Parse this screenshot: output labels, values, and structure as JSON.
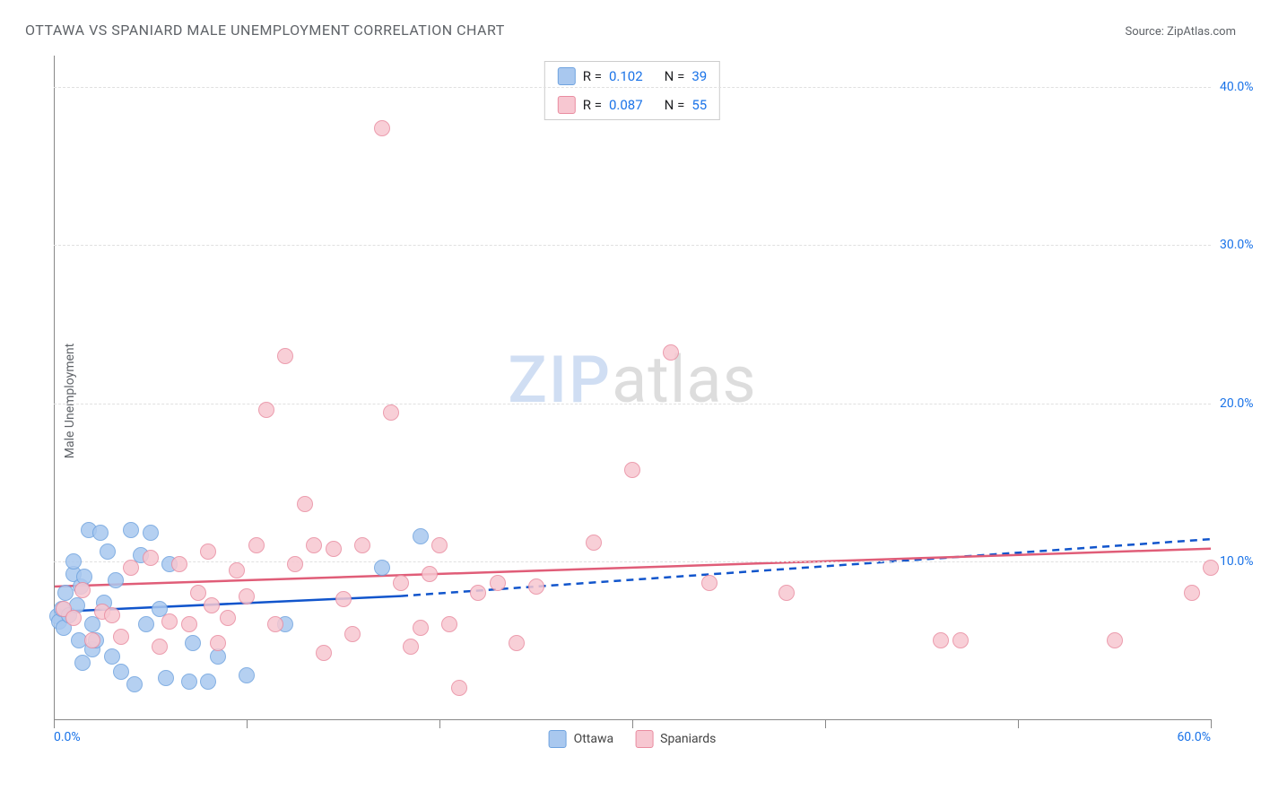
{
  "header": {
    "title": "OTTAWA VS SPANIARD MALE UNEMPLOYMENT CORRELATION CHART",
    "source": "Source: ZipAtlas.com"
  },
  "y_axis": {
    "label": "Male Unemployment"
  },
  "watermark": {
    "zip": "ZIP",
    "atlas": "atlas"
  },
  "chart": {
    "type": "scatter",
    "xlim": [
      0,
      60
    ],
    "ylim": [
      0,
      42
    ],
    "x_ticks": [
      0,
      10,
      20,
      30,
      40,
      50,
      60
    ],
    "x_tick_labels": [
      "0.0%",
      "",
      "",
      "",
      "",
      "",
      "60.0%"
    ],
    "y_grid": [
      10,
      20,
      30,
      40
    ],
    "y_tick_labels": [
      "10.0%",
      "20.0%",
      "30.0%",
      "40.0%"
    ],
    "background_color": "#ffffff",
    "grid_color": "#e0e0e0",
    "axis_color": "#888888",
    "marker_radius": 9,
    "marker_stroke_width": 1.5,
    "series": [
      {
        "name": "Ottawa",
        "fill": "#a9c8ef",
        "stroke": "#6fa3df",
        "R": "0.102",
        "N": "39",
        "trend": {
          "color": "#1155cc",
          "width": 2.5,
          "solid": [
            [
              0,
              6.8
            ],
            [
              18,
              7.8
            ]
          ],
          "dash": [
            [
              18,
              7.8
            ],
            [
              60,
              11.4
            ]
          ]
        },
        "points": [
          [
            0.2,
            6.5
          ],
          [
            0.3,
            6.2
          ],
          [
            0.4,
            7.0
          ],
          [
            0.5,
            5.8
          ],
          [
            0.6,
            8.0
          ],
          [
            0.8,
            6.6
          ],
          [
            1.0,
            9.2
          ],
          [
            1.0,
            10.0
          ],
          [
            1.2,
            7.2
          ],
          [
            1.3,
            5.0
          ],
          [
            1.4,
            8.4
          ],
          [
            1.5,
            3.6
          ],
          [
            1.6,
            9.0
          ],
          [
            1.8,
            12.0
          ],
          [
            2.0,
            6.0
          ],
          [
            2.0,
            4.4
          ],
          [
            2.2,
            5.0
          ],
          [
            2.4,
            11.8
          ],
          [
            2.6,
            7.4
          ],
          [
            2.8,
            10.6
          ],
          [
            3.0,
            4.0
          ],
          [
            3.2,
            8.8
          ],
          [
            3.5,
            3.0
          ],
          [
            4.0,
            12.0
          ],
          [
            4.2,
            2.2
          ],
          [
            4.5,
            10.4
          ],
          [
            4.8,
            6.0
          ],
          [
            5.0,
            11.8
          ],
          [
            5.5,
            7.0
          ],
          [
            5.8,
            2.6
          ],
          [
            6.0,
            9.8
          ],
          [
            7.0,
            2.4
          ],
          [
            7.2,
            4.8
          ],
          [
            8.0,
            2.4
          ],
          [
            8.5,
            4.0
          ],
          [
            10.0,
            2.8
          ],
          [
            12.0,
            6.0
          ],
          [
            17.0,
            9.6
          ],
          [
            19.0,
            11.6
          ]
        ]
      },
      {
        "name": "Spaniards",
        "fill": "#f7c7d1",
        "stroke": "#e98ca0",
        "R": "0.087",
        "N": "55",
        "trend": {
          "color": "#e05d78",
          "width": 2.5,
          "solid": [
            [
              0,
              8.4
            ],
            [
              60,
              10.8
            ]
          ],
          "dash": null
        },
        "points": [
          [
            0.5,
            7.0
          ],
          [
            1.0,
            6.4
          ],
          [
            1.5,
            8.2
          ],
          [
            2.0,
            5.0
          ],
          [
            2.5,
            6.8
          ],
          [
            3.0,
            6.6
          ],
          [
            3.5,
            5.2
          ],
          [
            4.0,
            9.6
          ],
          [
            5.0,
            10.2
          ],
          [
            5.5,
            4.6
          ],
          [
            6.0,
            6.2
          ],
          [
            6.5,
            9.8
          ],
          [
            7.0,
            6.0
          ],
          [
            7.5,
            8.0
          ],
          [
            8.0,
            10.6
          ],
          [
            8.2,
            7.2
          ],
          [
            8.5,
            4.8
          ],
          [
            9.0,
            6.4
          ],
          [
            9.5,
            9.4
          ],
          [
            10.0,
            7.8
          ],
          [
            10.5,
            11.0
          ],
          [
            11.0,
            19.6
          ],
          [
            11.5,
            6.0
          ],
          [
            12.0,
            23.0
          ],
          [
            12.5,
            9.8
          ],
          [
            13.0,
            13.6
          ],
          [
            13.5,
            11.0
          ],
          [
            14.0,
            4.2
          ],
          [
            14.5,
            10.8
          ],
          [
            15.0,
            7.6
          ],
          [
            15.5,
            5.4
          ],
          [
            16.0,
            11.0
          ],
          [
            17.0,
            37.4
          ],
          [
            17.5,
            19.4
          ],
          [
            18.0,
            8.6
          ],
          [
            18.5,
            4.6
          ],
          [
            19.0,
            5.8
          ],
          [
            19.5,
            9.2
          ],
          [
            20.0,
            11.0
          ],
          [
            20.5,
            6.0
          ],
          [
            21.0,
            2.0
          ],
          [
            22.0,
            8.0
          ],
          [
            23.0,
            8.6
          ],
          [
            24.0,
            4.8
          ],
          [
            25.0,
            8.4
          ],
          [
            28.0,
            11.2
          ],
          [
            30.0,
            15.8
          ],
          [
            32.0,
            23.2
          ],
          [
            34.0,
            8.6
          ],
          [
            38.0,
            8.0
          ],
          [
            46.0,
            5.0
          ],
          [
            47.0,
            5.0
          ],
          [
            55.0,
            5.0
          ],
          [
            59.0,
            8.0
          ],
          [
            60.0,
            9.6
          ]
        ]
      }
    ]
  },
  "legend_top": {
    "rows": [
      {
        "swatch_fill": "#a9c8ef",
        "swatch_stroke": "#6fa3df",
        "r_lbl": "R =",
        "r": "0.102",
        "n_lbl": "N =",
        "n": "39"
      },
      {
        "swatch_fill": "#f7c7d1",
        "swatch_stroke": "#e98ca0",
        "r_lbl": "R =",
        "r": "0.087",
        "n_lbl": "N =",
        "n": "55"
      }
    ]
  },
  "legend_bottom": {
    "items": [
      {
        "fill": "#a9c8ef",
        "stroke": "#6fa3df",
        "label": "Ottawa"
      },
      {
        "fill": "#f7c7d1",
        "stroke": "#e98ca0",
        "label": "Spaniards"
      }
    ]
  }
}
